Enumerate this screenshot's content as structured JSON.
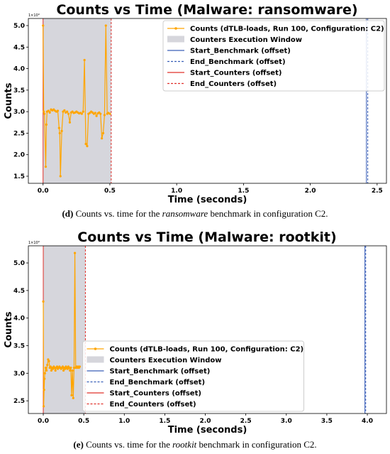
{
  "chart_data": [
    {
      "type": "line",
      "title": "Counts vs Time (Malware: ransomware)",
      "x_label": "Time (seconds)",
      "y_label": "Counts",
      "y_offset_label": "1×10⁹",
      "xlim": [
        -0.11,
        2.57
      ],
      "ylim": [
        1.335,
        5.165
      ],
      "xticks": [
        {
          "value": 0,
          "label": "0.0"
        },
        0.5,
        {
          "value": 1,
          "label": "1.0"
        },
        1.5,
        {
          "value": 2,
          "label": "2.0"
        },
        2.5
      ],
      "yticks": [
        1.5,
        {
          "value": 2,
          "label": "2.0"
        },
        2.5,
        {
          "value": 3,
          "label": "3.0"
        },
        3.5,
        {
          "value": 4,
          "label": "4.0"
        },
        4.5,
        {
          "value": 5,
          "label": "5.0"
        }
      ],
      "legend": "upper right",
      "series": [
        {
          "name": "Counts (dTLB-loads, Run 100, Configuration: C2)",
          "color": "#ffa500",
          "x": [
            0,
            0.005,
            0.01,
            0.02,
            0.025,
            0.03,
            0.04,
            0.05,
            0.06,
            0.07,
            0.08,
            0.09,
            0.1,
            0.11,
            0.12,
            0.125,
            0.13,
            0.14,
            0.15,
            0.16,
            0.17,
            0.18,
            0.19,
            0.2,
            0.21,
            0.22,
            0.23,
            0.24,
            0.25,
            0.26,
            0.27,
            0.28,
            0.29,
            0.3,
            0.31,
            0.32,
            0.33,
            0.34,
            0.35,
            0.36,
            0.37,
            0.38,
            0.39,
            0.4,
            0.41,
            0.42,
            0.43,
            0.44,
            0.45,
            0.46,
            0.47,
            0.48,
            0.49,
            0.5
          ],
          "values": [
            5.0,
            3.0,
            2.95,
            1.72,
            2.7,
            3.0,
            3.02,
            2.98,
            3.05,
            3.03,
            3.05,
            3.02,
            3.0,
            3.02,
            2.62,
            2.5,
            1.5,
            2.55,
            3.0,
            3.03,
            2.98,
            3.0,
            2.95,
            2.75,
            2.98,
            3.0,
            2.97,
            2.98,
            3.0,
            2.98,
            2.96,
            2.97,
            2.95,
            3.0,
            4.2,
            2.25,
            2.2,
            2.95,
            2.97,
            3.0,
            2.98,
            2.95,
            2.97,
            2.9,
            2.96,
            2.98,
            2.95,
            2.38,
            2.5,
            2.92,
            5.0,
            2.95,
            2.97,
            2.95
          ]
        }
      ],
      "spans": [
        {
          "name": "Counters Execution Window",
          "color": "#d6d6dc",
          "range": [
            0,
            0.51
          ]
        }
      ],
      "vlines": [
        {
          "name": "Start_Benchmark (offset)",
          "color": "#3a5fb8",
          "x": 2.42,
          "dashed": false
        },
        {
          "name": "End_Benchmark (offset)",
          "color": "#3a5fb8",
          "x": 2.43,
          "dashed": true
        },
        {
          "name": "Start_Counters (offset)",
          "color": "#e0302a",
          "x": 0,
          "dashed": false
        },
        {
          "name": "End_Counters (offset)",
          "color": "#e0302a",
          "x": 0.51,
          "dashed": true
        }
      ]
    },
    {
      "type": "line",
      "title": "Counts vs Time (Malware: rootkit)",
      "x_label": "Time (seconds)",
      "y_label": "Counts",
      "y_offset_label": "1×10⁹",
      "xlim": [
        -0.184,
        4.236
      ],
      "ylim": [
        2.27,
        5.31
      ],
      "xticks": [
        {
          "value": 0,
          "label": "0.0"
        },
        0.5,
        {
          "value": 1,
          "label": "1.0"
        },
        1.5,
        {
          "value": 2,
          "label": "2.0"
        },
        2.5,
        {
          "value": 3,
          "label": "3.0"
        },
        3.5,
        {
          "value": 4,
          "label": "4.0"
        }
      ],
      "yticks": [
        2.5,
        {
          "value": 3,
          "label": "3.0"
        },
        3.5,
        {
          "value": 4,
          "label": "4.0"
        },
        4.5,
        {
          "value": 5,
          "label": "5.0"
        }
      ],
      "legend": "lower center",
      "series": [
        {
          "name": "Counts (dTLB-loads, Run 100, Configuration: C2)",
          "color": "#ffa500",
          "x": [
            0,
            0.005,
            0.01,
            0.015,
            0.02,
            0.03,
            0.04,
            0.05,
            0.06,
            0.07,
            0.08,
            0.09,
            0.1,
            0.11,
            0.12,
            0.13,
            0.14,
            0.15,
            0.16,
            0.17,
            0.18,
            0.19,
            0.2,
            0.21,
            0.22,
            0.23,
            0.24,
            0.25,
            0.26,
            0.27,
            0.28,
            0.29,
            0.3,
            0.31,
            0.32,
            0.33,
            0.34,
            0.35,
            0.36,
            0.37,
            0.38,
            0.39,
            0.4,
            0.41,
            0.42,
            0.43,
            0.44,
            0.45
          ],
          "values": [
            4.3,
            2.4,
            2.7,
            2.9,
            3.0,
            3.1,
            3.05,
            3.15,
            3.25,
            3.22,
            3.1,
            3.12,
            3.05,
            3.1,
            3.08,
            3.12,
            3.1,
            3.05,
            3.1,
            3.12,
            3.08,
            3.1,
            3.12,
            3.1,
            3.08,
            3.1,
            3.12,
            3.05,
            3.1,
            3.08,
            3.12,
            3.1,
            3.08,
            3.12,
            3.1,
            3.05,
            3.1,
            2.6,
            3.05,
            2.55,
            3.1,
            5.18,
            3.1,
            3.12,
            3.1,
            3.12,
            3.1,
            3.12
          ]
        }
      ],
      "spans": [
        {
          "name": "Counters Execution Window",
          "color": "#d6d6dc",
          "range": [
            0,
            0.52
          ]
        }
      ],
      "vlines": [
        {
          "name": "Start_Benchmark (offset)",
          "color": "#3a5fb8",
          "x": 3.97,
          "dashed": false
        },
        {
          "name": "End_Benchmark (offset)",
          "color": "#3a5fb8",
          "x": 3.98,
          "dashed": true
        },
        {
          "name": "Start_Counters (offset)",
          "color": "#e0302a",
          "x": 0,
          "dashed": false
        },
        {
          "name": "End_Counters (offset)",
          "color": "#e0302a",
          "x": 0.52,
          "dashed": true
        }
      ]
    }
  ],
  "captions": [
    {
      "label": "(d)",
      "prefix": "Counts vs. time for the",
      "emphasis": "ransomware",
      "suffix": "benchmark in configuration C2."
    },
    {
      "label": "(e)",
      "prefix": "Counts vs. time for the",
      "emphasis": "rootkit",
      "suffix": "benchmark in configuration C2."
    }
  ]
}
